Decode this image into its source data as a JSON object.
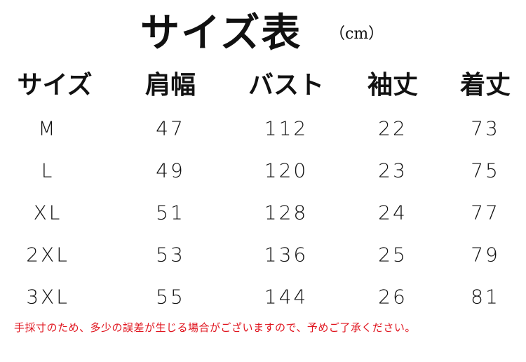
{
  "title": "サイズ表",
  "unit": "（cm）",
  "headers": [
    "サイズ",
    "肩幅",
    "バスト",
    "袖丈",
    "着丈"
  ],
  "rows": [
    [
      "M",
      "47",
      "112",
      "22",
      "73"
    ],
    [
      "L",
      "49",
      "120",
      "23",
      "75"
    ],
    [
      "XL",
      "51",
      "128",
      "24",
      "77"
    ],
    [
      "2XL",
      "53",
      "136",
      "25",
      "79"
    ],
    [
      "3XL",
      "55",
      "144",
      "26",
      "81"
    ]
  ],
  "note": "手採寸のため、多少の誤差が生じる場合がございますので、予めご了承ください。",
  "colors": {
    "note": "#e0141e",
    "text": "#111111"
  }
}
